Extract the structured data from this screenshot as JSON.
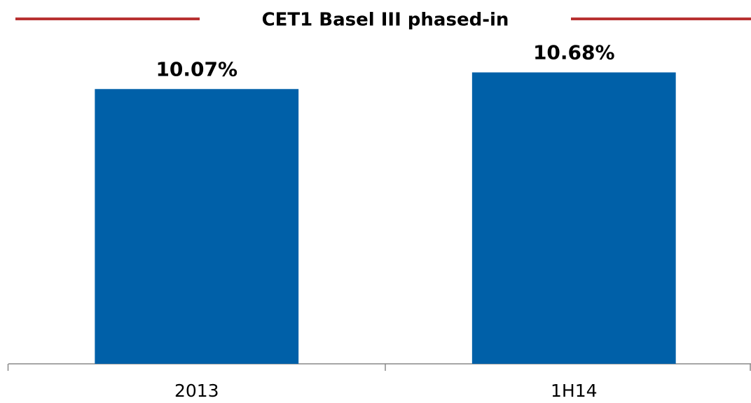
{
  "chart_data": {
    "type": "bar",
    "title": "CET1 Basel III phased-in",
    "categories": [
      "2013",
      "1H14"
    ],
    "values": [
      10.07,
      10.68
    ],
    "value_labels": [
      "10.07%",
      "10.68%"
    ],
    "color": "#0060a8",
    "ylim": [
      0,
      12
    ]
  }
}
